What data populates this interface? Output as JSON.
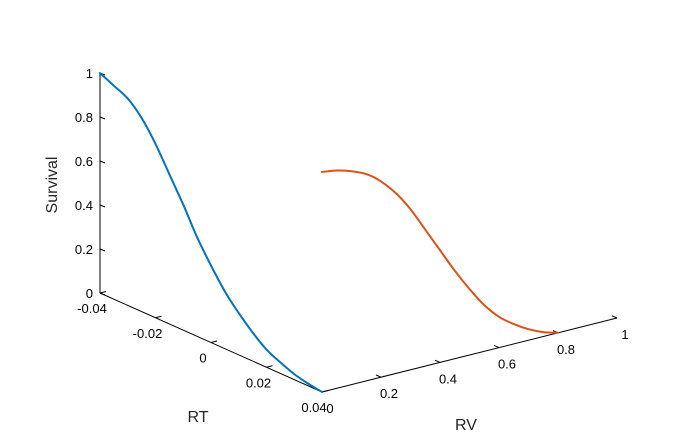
{
  "chart_data": {
    "type": "line",
    "title": "",
    "zlabel": "Survival",
    "rt_label": "RT",
    "rv_label": "RV",
    "z_ticks": [
      {
        "value": 0,
        "label": "0"
      },
      {
        "value": 0.2,
        "label": "0.2"
      },
      {
        "value": 0.4,
        "label": "0.4"
      },
      {
        "value": 0.6,
        "label": "0.6"
      },
      {
        "value": 0.8,
        "label": "0.8"
      },
      {
        "value": 1,
        "label": "1"
      }
    ],
    "rt_ticks": [
      {
        "value": -0.04,
        "label": "-0.04"
      },
      {
        "value": -0.02,
        "label": "-0.02"
      },
      {
        "value": 0,
        "label": "0"
      },
      {
        "value": 0.02,
        "label": "0.02"
      },
      {
        "value": 0.04,
        "label": "0.04"
      }
    ],
    "rv_ticks": [
      {
        "value": 0,
        "label": "0"
      },
      {
        "value": 0.2,
        "label": "0.2"
      },
      {
        "value": 0.4,
        "label": "0.4"
      },
      {
        "value": 0.6,
        "label": "0.6"
      },
      {
        "value": 0.8,
        "label": "0.8"
      },
      {
        "value": 1,
        "label": "1"
      }
    ],
    "rt_range": [
      -0.04,
      0.04
    ],
    "rv_range": [
      0,
      1
    ],
    "z_range": [
      0,
      1
    ],
    "grid": false,
    "series": [
      {
        "plane": "rt",
        "color": "#0072BD",
        "x": [
          -0.04,
          -0.035,
          -0.03,
          -0.025,
          -0.02,
          -0.015,
          -0.01,
          -0.005,
          0,
          0.005,
          0.01,
          0.015,
          0.02,
          0.025,
          0.03,
          0.035,
          0.04
        ],
        "survival": [
          1.0,
          0.97,
          0.94,
          0.88,
          0.79,
          0.68,
          0.57,
          0.45,
          0.35,
          0.26,
          0.19,
          0.13,
          0.08,
          0.05,
          0.025,
          0.01,
          0.0
        ]
      },
      {
        "plane": "rv",
        "color": "#D95319",
        "x": [
          0.0,
          0.05,
          0.1,
          0.15,
          0.2,
          0.25,
          0.3,
          0.35,
          0.4,
          0.45,
          0.5,
          0.55,
          0.6,
          0.65,
          0.7,
          0.75,
          0.8
        ],
        "survival": [
          1.0,
          0.99,
          0.97,
          0.94,
          0.89,
          0.82,
          0.73,
          0.62,
          0.51,
          0.4,
          0.3,
          0.21,
          0.14,
          0.09,
          0.05,
          0.02,
          0.0
        ]
      }
    ]
  }
}
